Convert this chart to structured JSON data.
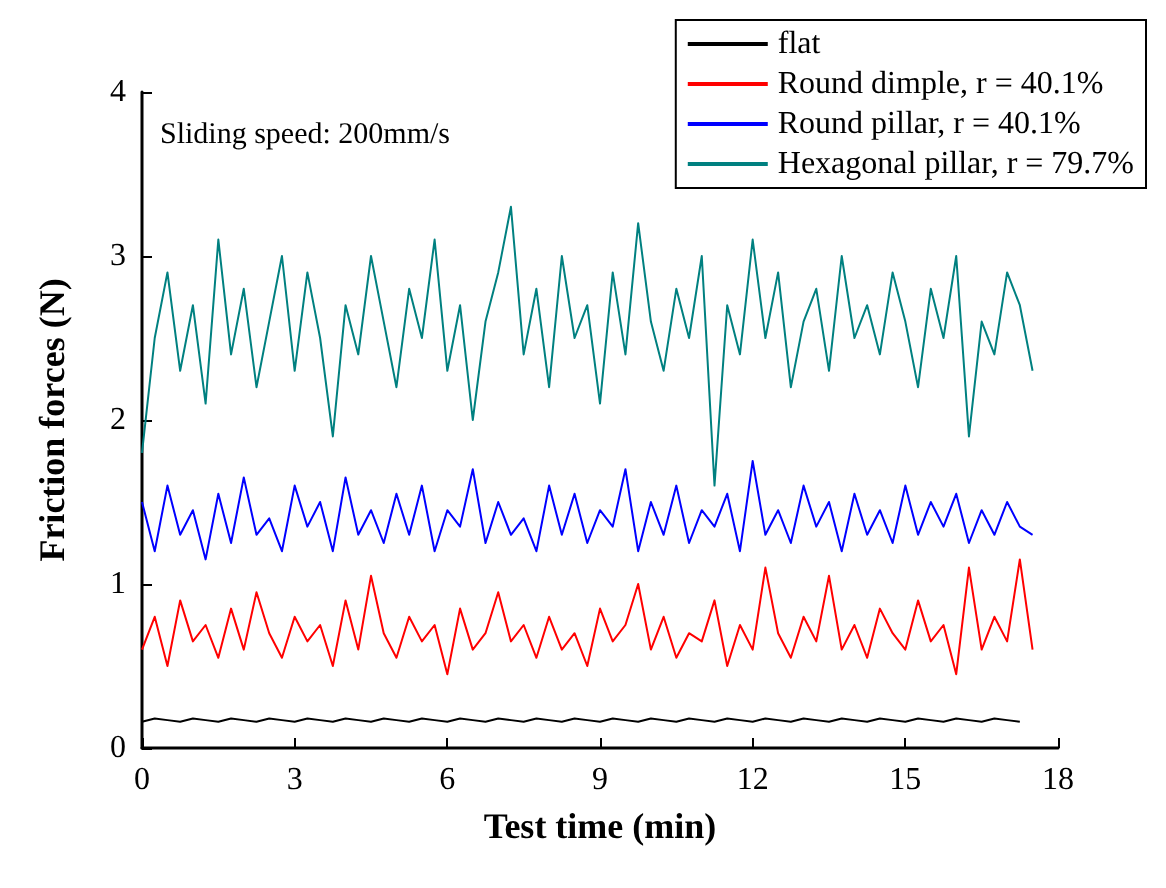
{
  "chart_data": {
    "type": "line",
    "xlabel": "Test time (min)",
    "ylabel": "Friction forces (N)",
    "annotations": [
      "Sliding speed: 200mm/s"
    ],
    "x": [
      0,
      0.25,
      0.5,
      0.75,
      1,
      1.25,
      1.5,
      1.75,
      2,
      2.25,
      2.5,
      2.75,
      3,
      3.25,
      3.5,
      3.75,
      4,
      4.25,
      4.5,
      4.75,
      5,
      5.25,
      5.5,
      5.75,
      6,
      6.25,
      6.5,
      6.75,
      7,
      7.25,
      7.5,
      7.75,
      8,
      8.25,
      8.5,
      8.75,
      9,
      9.25,
      9.5,
      9.75,
      10,
      10.25,
      10.5,
      10.75,
      11,
      11.25,
      11.5,
      11.75,
      12,
      12.25,
      12.5,
      12.75,
      13,
      13.25,
      13.5,
      13.75,
      14,
      14.25,
      14.5,
      14.75,
      15,
      15.25,
      15.5,
      15.75,
      16,
      16.25,
      16.5,
      16.75,
      17,
      17.25,
      17.5
    ],
    "series": [
      {
        "name": "flat",
        "color": "#000000",
        "values": [
          0.16,
          0.18,
          0.17,
          0.16,
          0.18,
          0.17,
          0.16,
          0.18,
          0.17,
          0.16,
          0.18,
          0.17,
          0.16,
          0.18,
          0.17,
          0.16,
          0.18,
          0.17,
          0.16,
          0.18,
          0.17,
          0.16,
          0.18,
          0.17,
          0.16,
          0.18,
          0.17,
          0.16,
          0.18,
          0.17,
          0.16,
          0.18,
          0.17,
          0.16,
          0.18,
          0.17,
          0.16,
          0.18,
          0.17,
          0.16,
          0.18,
          0.17,
          0.16,
          0.18,
          0.17,
          0.16,
          0.18,
          0.17,
          0.16,
          0.18,
          0.17,
          0.16,
          0.18,
          0.17,
          0.16,
          0.18,
          0.17,
          0.16,
          0.18,
          0.17,
          0.16,
          0.18,
          0.17,
          0.16,
          0.18,
          0.17,
          0.16,
          0.18,
          0.17,
          0.16,
          null
        ]
      },
      {
        "name": "Round dimple, r = 40.1%",
        "color": "#ff0000",
        "values": [
          0.6,
          0.8,
          0.5,
          0.9,
          0.65,
          0.75,
          0.55,
          0.85,
          0.6,
          0.95,
          0.7,
          0.55,
          0.8,
          0.65,
          0.75,
          0.5,
          0.9,
          0.6,
          1.05,
          0.7,
          0.55,
          0.8,
          0.65,
          0.75,
          0.45,
          0.85,
          0.6,
          0.7,
          0.95,
          0.65,
          0.75,
          0.55,
          0.8,
          0.6,
          0.7,
          0.5,
          0.85,
          0.65,
          0.75,
          1.0,
          0.6,
          0.8,
          0.55,
          0.7,
          0.65,
          0.9,
          0.5,
          0.75,
          0.6,
          1.1,
          0.7,
          0.55,
          0.8,
          0.65,
          1.05,
          0.6,
          0.75,
          0.55,
          0.85,
          0.7,
          0.6,
          0.9,
          0.65,
          0.75,
          0.45,
          1.1,
          0.6,
          0.8,
          0.65,
          1.15,
          0.6
        ]
      },
      {
        "name": "Round pillar, r = 40.1%",
        "color": "#0000ff",
        "values": [
          1.5,
          1.2,
          1.6,
          1.3,
          1.45,
          1.15,
          1.55,
          1.25,
          1.65,
          1.3,
          1.4,
          1.2,
          1.6,
          1.35,
          1.5,
          1.2,
          1.65,
          1.3,
          1.45,
          1.25,
          1.55,
          1.3,
          1.6,
          1.2,
          1.45,
          1.35,
          1.7,
          1.25,
          1.5,
          1.3,
          1.4,
          1.2,
          1.6,
          1.3,
          1.55,
          1.25,
          1.45,
          1.35,
          1.7,
          1.2,
          1.5,
          1.3,
          1.6,
          1.25,
          1.45,
          1.35,
          1.55,
          1.2,
          1.75,
          1.3,
          1.45,
          1.25,
          1.6,
          1.35,
          1.5,
          1.2,
          1.55,
          1.3,
          1.45,
          1.25,
          1.6,
          1.3,
          1.5,
          1.35,
          1.55,
          1.25,
          1.45,
          1.3,
          1.5,
          1.35,
          1.3
        ]
      },
      {
        "name": "Hexagonal pillar, r = 79.7%",
        "color": "#008080",
        "values": [
          1.8,
          2.5,
          2.9,
          2.3,
          2.7,
          2.1,
          3.1,
          2.4,
          2.8,
          2.2,
          2.6,
          3.0,
          2.3,
          2.9,
          2.5,
          1.9,
          2.7,
          2.4,
          3.0,
          2.6,
          2.2,
          2.8,
          2.5,
          3.1,
          2.3,
          2.7,
          2.0,
          2.6,
          2.9,
          3.3,
          2.4,
          2.8,
          2.2,
          3.0,
          2.5,
          2.7,
          2.1,
          2.9,
          2.4,
          3.2,
          2.6,
          2.3,
          2.8,
          2.5,
          3.0,
          1.6,
          2.7,
          2.4,
          3.1,
          2.5,
          2.9,
          2.2,
          2.6,
          2.8,
          2.3,
          3.0,
          2.5,
          2.7,
          2.4,
          2.9,
          2.6,
          2.2,
          2.8,
          2.5,
          3.0,
          1.9,
          2.6,
          2.4,
          2.9,
          2.7,
          2.3
        ]
      }
    ],
    "xlim": [
      0,
      18
    ],
    "xticks": [
      0,
      3,
      6,
      9,
      12,
      15,
      18
    ],
    "ylim": [
      0,
      4
    ],
    "yticks": [
      0,
      1,
      2,
      3,
      4
    ],
    "grid": false,
    "legend": "top right",
    "marker": "none",
    "line_style": "solid"
  }
}
